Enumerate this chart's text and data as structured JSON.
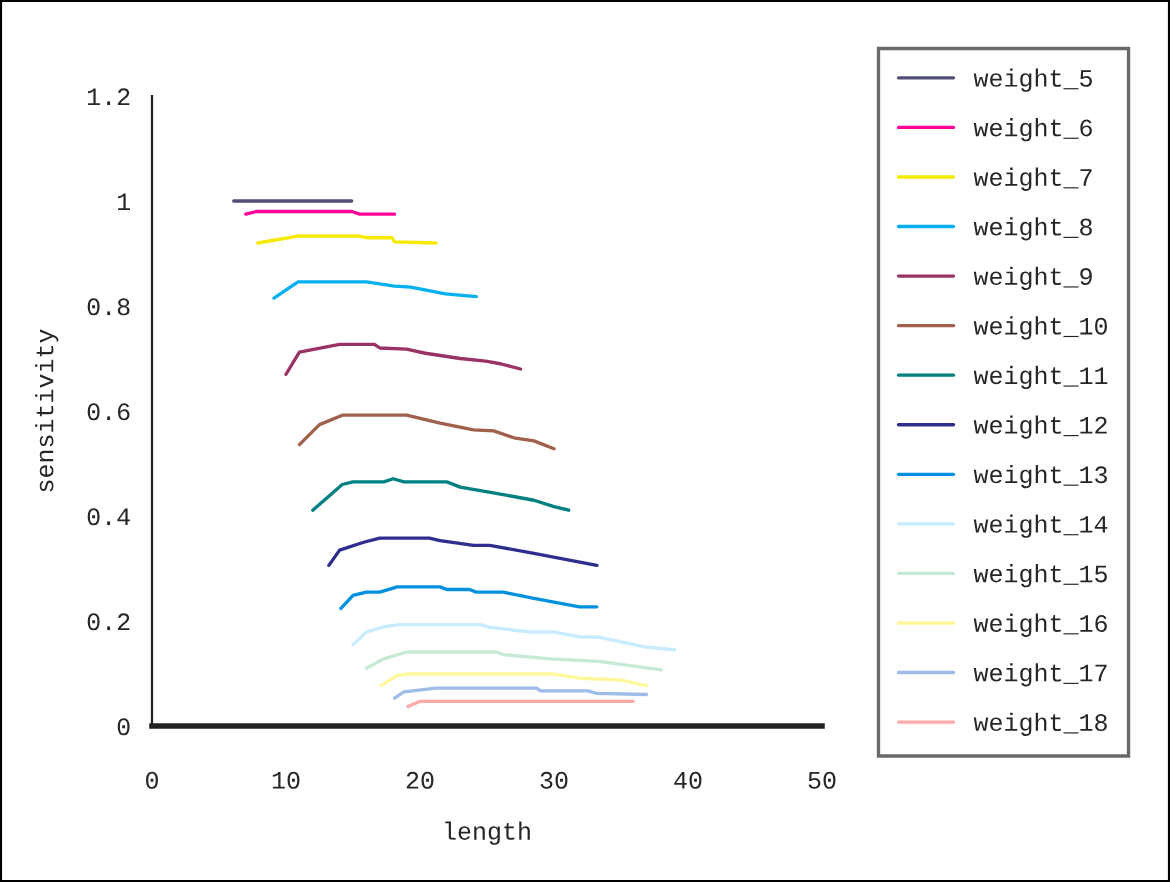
{
  "chart_data": {
    "type": "line",
    "xlabel": "length",
    "ylabel": "sensitivity",
    "xlim": [
      0,
      50
    ],
    "ylim": [
      0,
      1.2
    ],
    "xticks": [
      0,
      10,
      20,
      30,
      40,
      50
    ],
    "yticks": [
      0,
      0.2,
      0.4,
      0.6,
      0.8,
      1,
      1.2
    ],
    "grid": false,
    "legend": "right",
    "marker": "none",
    "line_style": "solid",
    "series": [
      {
        "name": "weight_5",
        "color": "#505074",
        "x": [
          6.1,
          14.9
        ],
        "values": [
          1.0,
          1.0
        ]
      },
      {
        "name": "weight_6",
        "color": "#ff0099",
        "x": [
          7.0,
          7.8,
          14.9,
          15.5,
          18.1
        ],
        "values": [
          0.975,
          0.98,
          0.98,
          0.975,
          0.975
        ]
      },
      {
        "name": "weight_7",
        "color": "#f5ea00",
        "x": [
          7.9,
          10.9,
          15.4,
          16.1,
          17.9,
          18.1,
          21.2
        ],
        "values": [
          0.92,
          0.933,
          0.933,
          0.93,
          0.93,
          0.922,
          0.92
        ]
      },
      {
        "name": "weight_8",
        "color": "#00b0f0",
        "x": [
          9.1,
          10.9,
          16.0,
          18.1,
          19.3,
          21.9,
          24.2
        ],
        "values": [
          0.815,
          0.846,
          0.846,
          0.838,
          0.836,
          0.823,
          0.818
        ]
      },
      {
        "name": "weight_9",
        "color": "#993366",
        "x": [
          10.0,
          11.0,
          14.0,
          16.6,
          17.0,
          19.0,
          20.4,
          23.0,
          24.9,
          26.0,
          27.5
        ],
        "values": [
          0.67,
          0.712,
          0.727,
          0.727,
          0.72,
          0.718,
          0.71,
          0.7,
          0.695,
          0.69,
          0.68
        ]
      },
      {
        "name": "weight_10",
        "color": "#a0604c",
        "x": [
          11.0,
          12.5,
          14.2,
          19.0,
          21.5,
          24.0,
          25.5,
          27.0,
          28.5,
          30.0
        ],
        "values": [
          0.536,
          0.574,
          0.592,
          0.592,
          0.577,
          0.564,
          0.562,
          0.549,
          0.543,
          0.528
        ]
      },
      {
        "name": "weight_11",
        "color": "#008080",
        "x": [
          12.0,
          14.2,
          15.0,
          17.3,
          18.0,
          18.8,
          22.0,
          23.0,
          25.9,
          28.5,
          30.0,
          31.1
        ],
        "values": [
          0.411,
          0.46,
          0.465,
          0.465,
          0.471,
          0.465,
          0.465,
          0.455,
          0.442,
          0.43,
          0.418,
          0.411
        ]
      },
      {
        "name": "weight_12",
        "color": "#2e2e8e",
        "x": [
          13.2,
          14.0,
          15.8,
          17.0,
          20.7,
          21.5,
          24.0,
          25.2,
          28.5,
          33.2
        ],
        "values": [
          0.306,
          0.335,
          0.35,
          0.358,
          0.358,
          0.353,
          0.344,
          0.344,
          0.329,
          0.306
        ]
      },
      {
        "name": "weight_13",
        "color": "#0090e0",
        "x": [
          14.1,
          15.0,
          16.0,
          17.0,
          18.3,
          21.5,
          22.0,
          23.7,
          24.2,
          26.2,
          28.5,
          31.9,
          33.2
        ],
        "values": [
          0.224,
          0.249,
          0.255,
          0.255,
          0.265,
          0.265,
          0.26,
          0.26,
          0.255,
          0.255,
          0.243,
          0.227,
          0.227
        ]
      },
      {
        "name": "weight_14",
        "color": "#c8ecff",
        "x": [
          15.0,
          16.0,
          17.3,
          18.5,
          24.5,
          25.2,
          28.2,
          30.0,
          31.9,
          33.4,
          36.7,
          39.0
        ],
        "values": [
          0.155,
          0.179,
          0.189,
          0.193,
          0.193,
          0.188,
          0.179,
          0.179,
          0.17,
          0.169,
          0.151,
          0.145
        ]
      },
      {
        "name": "weight_15",
        "color": "#c6ead6",
        "x": [
          16.0,
          17.3,
          19.0,
          25.7,
          26.2,
          29.7,
          33.4,
          38.0
        ],
        "values": [
          0.11,
          0.128,
          0.141,
          0.141,
          0.136,
          0.128,
          0.123,
          0.107
        ]
      },
      {
        "name": "weight_16",
        "color": "#fff799",
        "x": [
          17.1,
          18.3,
          19.0,
          30.0,
          31.9,
          34.9,
          36.9
        ],
        "values": [
          0.077,
          0.096,
          0.099,
          0.099,
          0.091,
          0.088,
          0.077
        ]
      },
      {
        "name": "weight_17",
        "color": "#9ebce8",
        "x": [
          18.1,
          18.8,
          21.2,
          28.7,
          29.0,
          32.5,
          33.2,
          36.9
        ],
        "values": [
          0.053,
          0.065,
          0.072,
          0.072,
          0.067,
          0.067,
          0.062,
          0.06
        ]
      },
      {
        "name": "weight_18",
        "color": "#ffaaaa",
        "x": [
          19.1,
          20.0,
          35.9
        ],
        "values": [
          0.037,
          0.047,
          0.047
        ]
      }
    ]
  }
}
